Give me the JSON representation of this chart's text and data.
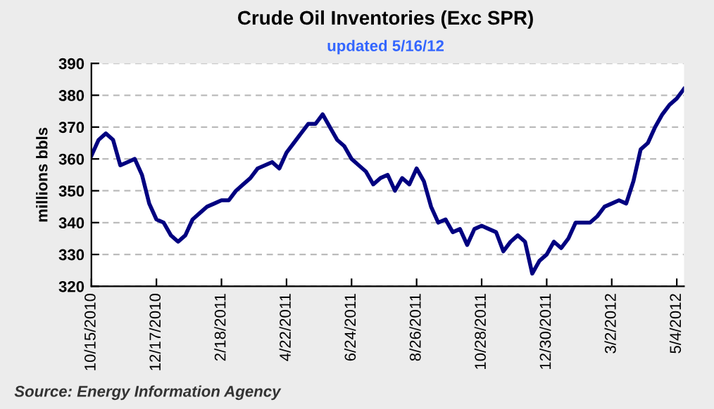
{
  "chart_data": {
    "type": "line",
    "title": "Crude Oil Inventories (Exc SPR)",
    "subtitle": "updated 5/16/12",
    "ylabel": "millions bbls",
    "annotations": [
      "Source: Energy Information Agency"
    ],
    "x": [
      "2010-10-15",
      "2010-10-22",
      "2010-10-29",
      "2010-11-05",
      "2010-11-12",
      "2010-11-19",
      "2010-11-26",
      "2010-12-03",
      "2010-12-10",
      "2010-12-17",
      "2010-12-24",
      "2010-12-31",
      "2011-01-07",
      "2011-01-14",
      "2011-01-21",
      "2011-01-28",
      "2011-02-04",
      "2011-02-11",
      "2011-02-18",
      "2011-02-25",
      "2011-03-04",
      "2011-03-11",
      "2011-03-18",
      "2011-03-25",
      "2011-04-01",
      "2011-04-08",
      "2011-04-15",
      "2011-04-22",
      "2011-04-29",
      "2011-05-06",
      "2011-05-13",
      "2011-05-20",
      "2011-05-27",
      "2011-06-03",
      "2011-06-10",
      "2011-06-17",
      "2011-06-24",
      "2011-07-01",
      "2011-07-08",
      "2011-07-15",
      "2011-07-22",
      "2011-07-29",
      "2011-08-05",
      "2011-08-12",
      "2011-08-19",
      "2011-08-26",
      "2011-09-02",
      "2011-09-09",
      "2011-09-16",
      "2011-09-23",
      "2011-09-30",
      "2011-10-07",
      "2011-10-14",
      "2011-10-21",
      "2011-10-28",
      "2011-11-04",
      "2011-11-11",
      "2011-11-18",
      "2011-11-25",
      "2011-12-02",
      "2011-12-09",
      "2011-12-16",
      "2011-12-23",
      "2011-12-30",
      "2012-01-06",
      "2012-01-13",
      "2012-01-20",
      "2012-01-27",
      "2012-02-03",
      "2012-02-10",
      "2012-02-17",
      "2012-02-24",
      "2012-03-02",
      "2012-03-09",
      "2012-03-16",
      "2012-03-23",
      "2012-03-30",
      "2012-04-06",
      "2012-04-13",
      "2012-04-20",
      "2012-04-27",
      "2012-05-04",
      "2012-05-11"
    ],
    "series": [
      {
        "color": "#000080",
        "values": [
          361,
          366,
          368,
          366,
          358,
          359,
          360,
          355,
          346,
          341,
          340,
          336,
          334,
          336,
          341,
          343,
          345,
          346,
          347,
          347,
          350,
          352,
          354,
          357,
          358,
          359,
          357,
          362,
          365,
          368,
          371,
          371,
          374,
          370,
          366,
          364,
          360,
          358,
          356,
          352,
          354,
          355,
          350,
          354,
          352,
          357,
          353,
          345,
          340,
          341,
          337,
          338,
          333,
          338,
          339,
          338,
          337,
          331,
          334,
          336,
          334,
          324,
          328,
          330,
          334,
          332,
          335,
          340,
          340,
          340,
          342,
          345,
          346,
          347,
          346,
          353,
          363,
          365,
          370,
          374,
          377,
          379,
          382
        ]
      }
    ],
    "xlim": [
      "2010-10-15",
      "2012-05-11"
    ],
    "xticks": [
      {
        "value": "2010-10-15",
        "label": "10/15/2010"
      },
      {
        "value": "2010-12-17",
        "label": "12/17/2010"
      },
      {
        "value": "2011-02-18",
        "label": "2/18/2011"
      },
      {
        "value": "2011-04-22",
        "label": "4/22/2011"
      },
      {
        "value": "2011-06-24",
        "label": "6/24/2011"
      },
      {
        "value": "2011-08-26",
        "label": "8/26/2011"
      },
      {
        "value": "2011-10-28",
        "label": "10/28/2011"
      },
      {
        "value": "2011-12-30",
        "label": "12/30/2011"
      },
      {
        "value": "2012-03-02",
        "label": "3/2/2012"
      },
      {
        "value": "2012-05-04",
        "label": "5/4/2012"
      }
    ],
    "ylim": [
      320,
      390
    ],
    "yticks": [
      320,
      330,
      340,
      350,
      360,
      370,
      380,
      390
    ],
    "grid": "y",
    "line_style": "solid",
    "marker": "none"
  }
}
